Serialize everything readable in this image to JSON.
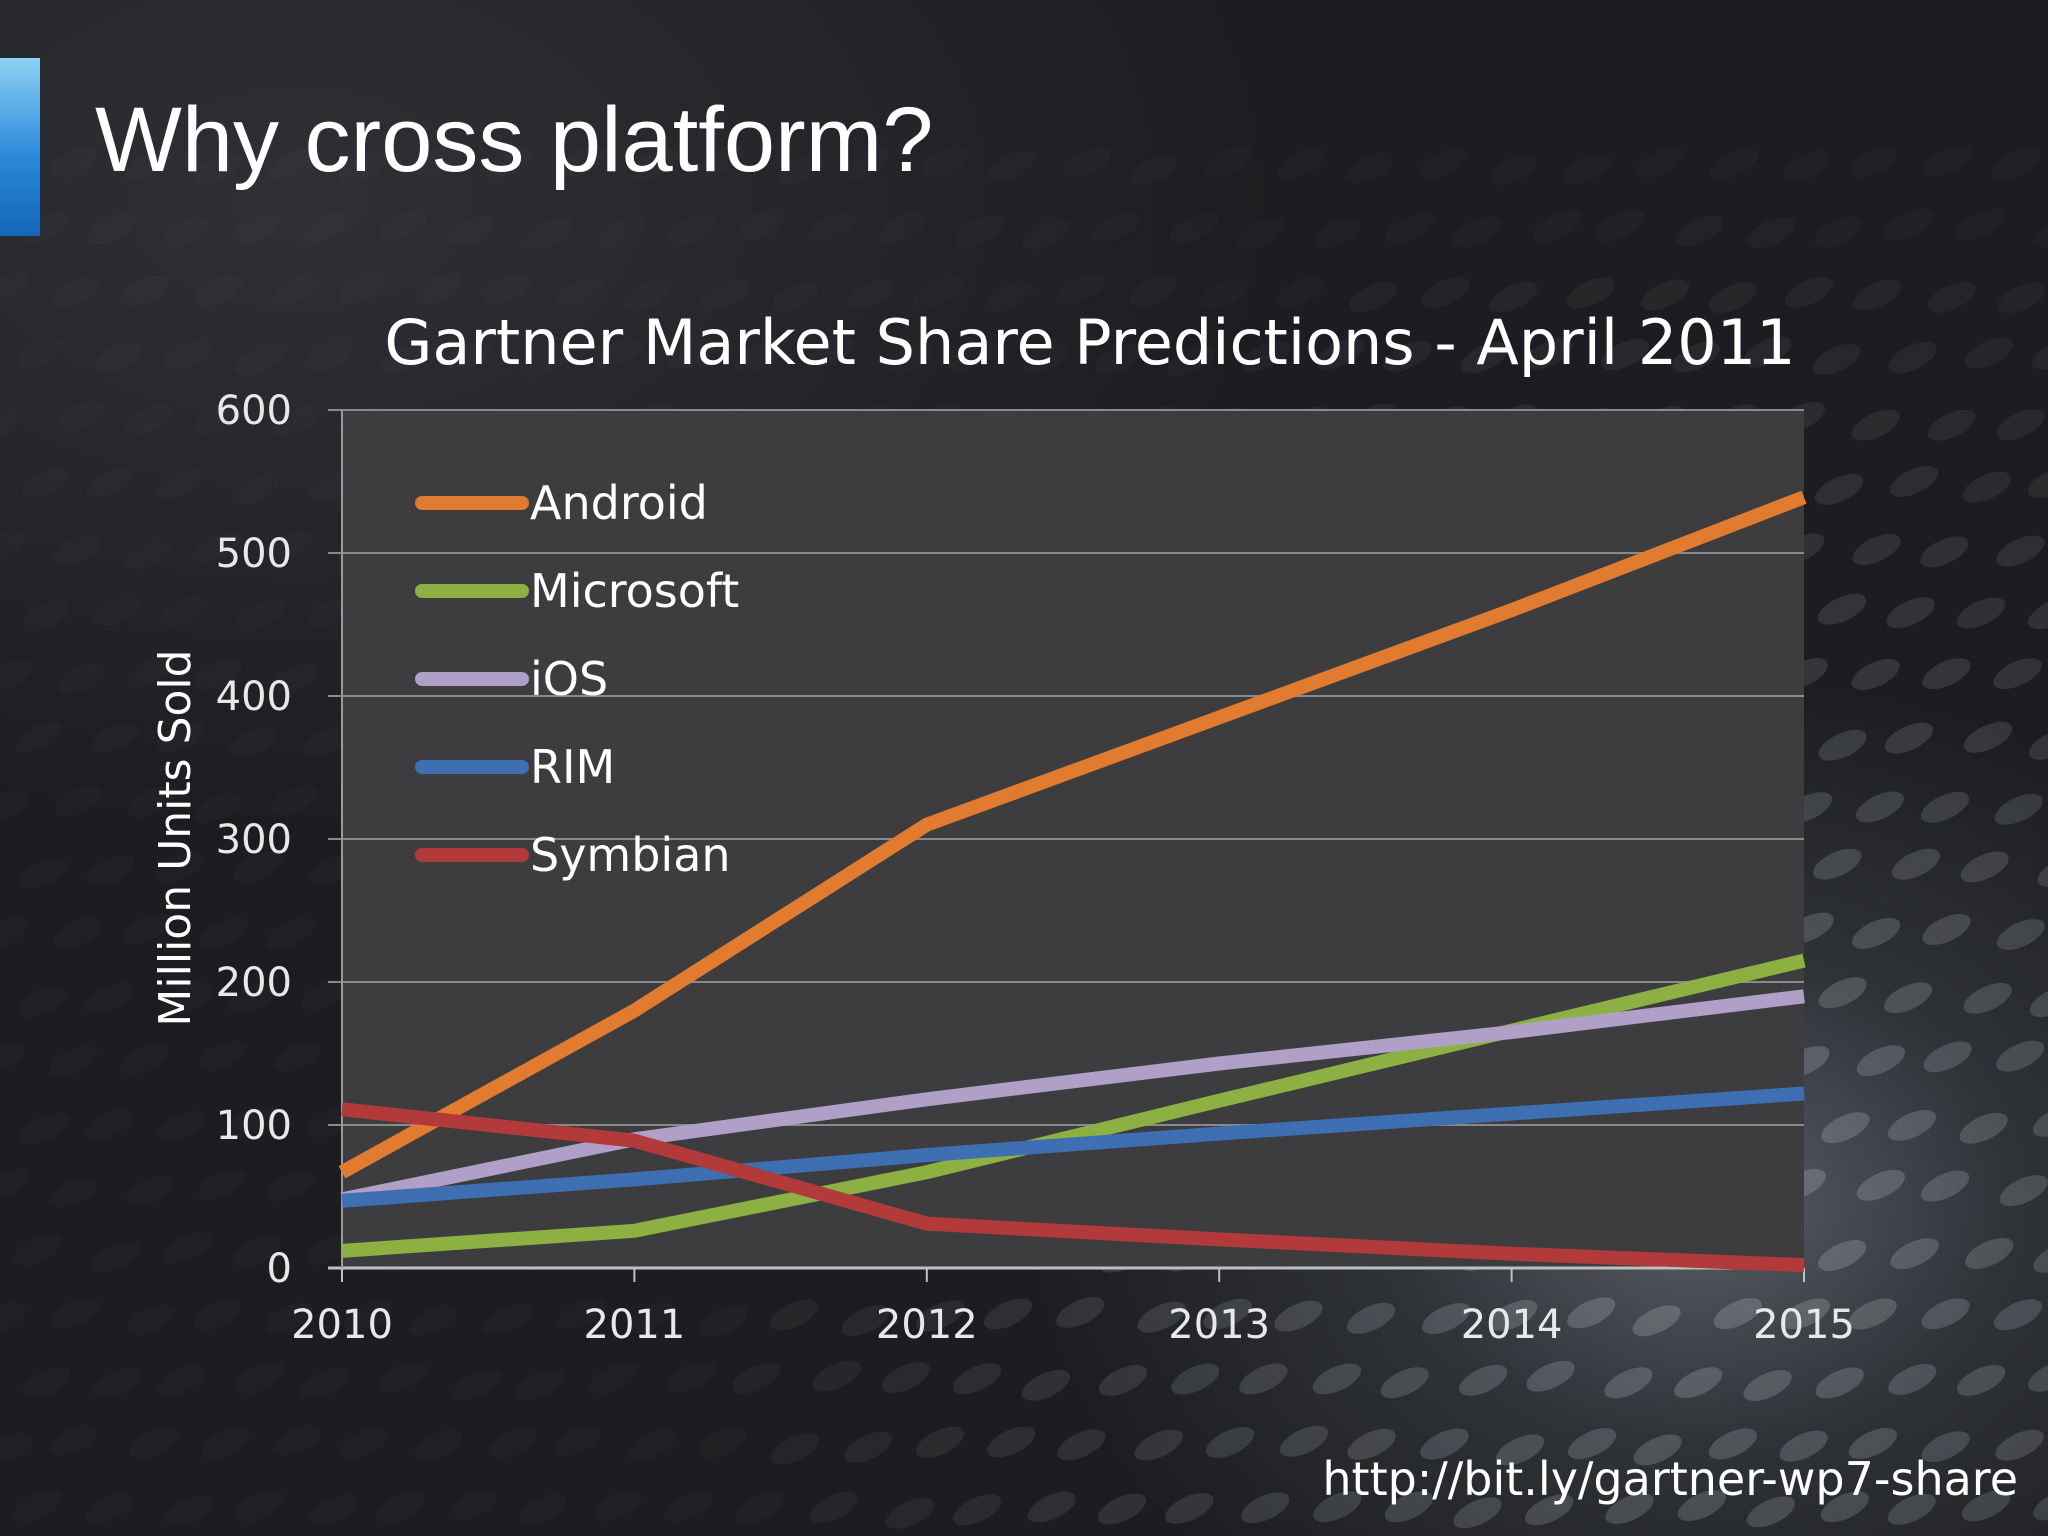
{
  "slide": {
    "title": "Why cross platform?",
    "source_link": "http://bit.ly/gartner-wp7-share",
    "accent_color": "#2a8ad8"
  },
  "chart_data": {
    "type": "line",
    "title": "Gartner Market Share Predictions - April 2011",
    "xlabel": "",
    "ylabel": "Million Units Sold",
    "x": [
      "2010",
      "2011",
      "2012",
      "2013",
      "2014",
      "2015"
    ],
    "ylim": [
      0,
      600
    ],
    "yticks": [
      "0",
      "100",
      "200",
      "300",
      "400",
      "500",
      "600"
    ],
    "grid": true,
    "legend_position": "top-left",
    "series": [
      {
        "name": "Android",
        "color": "#e07b2f",
        "values": [
          67,
          180,
          310,
          385,
          460,
          539
        ]
      },
      {
        "name": "Microsoft",
        "color": "#8db043",
        "values": [
          12,
          26,
          67,
          117,
          166,
          215
        ]
      },
      {
        "name": "iOS",
        "color": "#b0a0c8",
        "values": [
          48,
          90,
          118,
          143,
          165,
          190
        ]
      },
      {
        "name": "RIM",
        "color": "#3e6fb3",
        "values": [
          47,
          62,
          79,
          94,
          108,
          122
        ]
      },
      {
        "name": "Symbian",
        "color": "#b33a3a",
        "values": [
          111,
          89,
          31,
          20,
          10,
          2
        ]
      }
    ]
  }
}
